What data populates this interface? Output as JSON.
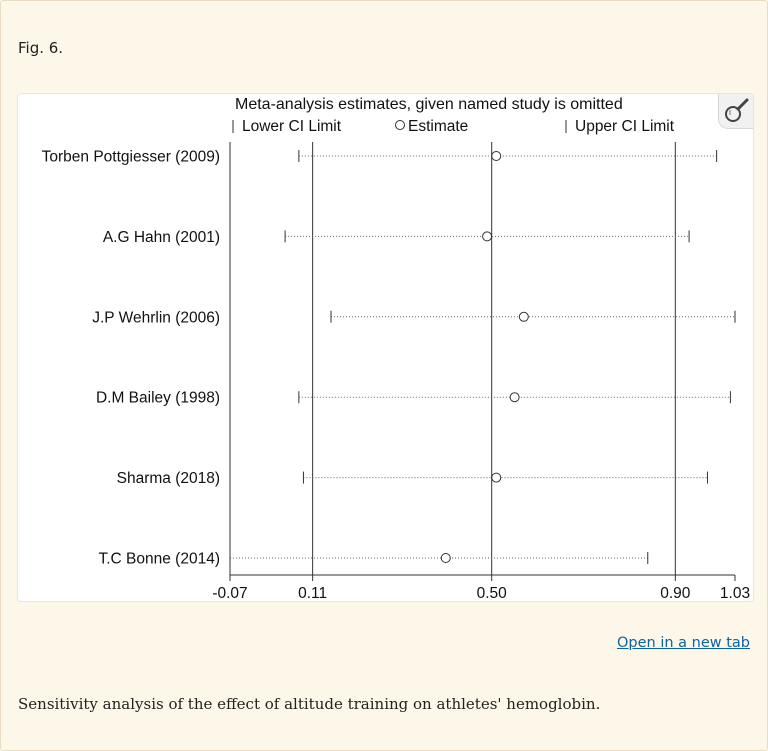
{
  "figure": {
    "label": "Fig. 6.",
    "caption": "Sensitivity analysis of the effect of altitude training on athletes' hemoglobin.",
    "open_link": "Open in a new tab",
    "zoom_icon": "magnifier-icon"
  },
  "chart_data": {
    "type": "forest-sensitivity",
    "title": "Meta-analysis estimates, given named study is omitted",
    "legend": {
      "lower": "Lower CI Limit",
      "estimate": "Estimate",
      "upper": "Upper CI Limit"
    },
    "x_range": [
      -0.07,
      1.03
    ],
    "ticks": [
      "-0.07",
      "0.11",
      "0.50",
      "0.90",
      "1.03"
    ],
    "tick_values": [
      -0.07,
      0.11,
      0.5,
      0.9,
      1.03
    ],
    "reference_lines": [
      -0.07,
      0.11,
      0.5,
      0.9
    ],
    "studies": [
      {
        "name": "Torben Pottgiesser (2009)",
        "lower": 0.08,
        "estimate": 0.51,
        "upper": 0.99
      },
      {
        "name": "A.G Hahn (2001)",
        "lower": 0.05,
        "estimate": 0.49,
        "upper": 0.93
      },
      {
        "name": "J.P Wehrlin (2006)",
        "lower": 0.15,
        "estimate": 0.57,
        "upper": 1.03
      },
      {
        "name": "D.M Bailey (1998)",
        "lower": 0.08,
        "estimate": 0.55,
        "upper": 1.02
      },
      {
        "name": "Sharma (2018)",
        "lower": 0.09,
        "estimate": 0.51,
        "upper": 0.97
      },
      {
        "name": "T.C Bonne (2014)",
        "lower": -0.07,
        "estimate": 0.4,
        "upper": 0.84
      }
    ]
  }
}
